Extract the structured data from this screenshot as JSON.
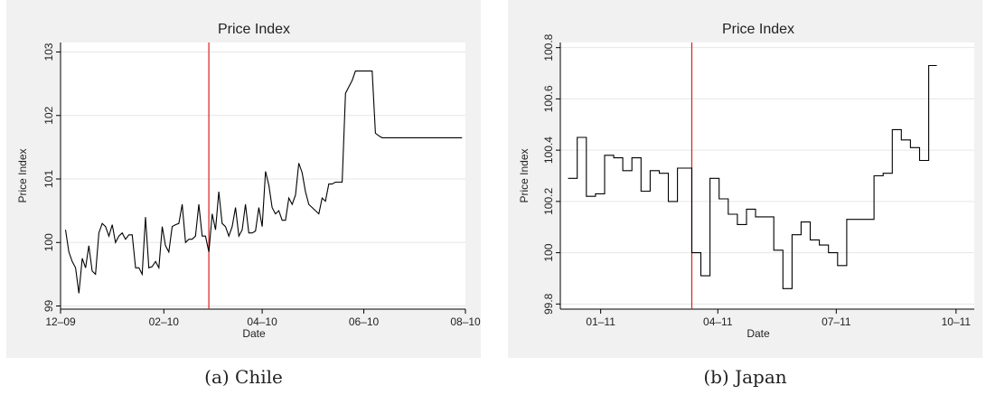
{
  "chart_data": [
    {
      "type": "line",
      "title": "Price Index",
      "xlabel": "Date",
      "ylabel": "Price Index",
      "caption": "(a)  Chile",
      "x_ticks": [
        "12–09",
        "02–10",
        "04–10",
        "06–10",
        "08–10"
      ],
      "xlim": [
        "2009-12-01",
        "2010-08-01"
      ],
      "y_ticks": [
        "99",
        "100",
        "101",
        "102",
        "103"
      ],
      "ylim": [
        98.95,
        103.15
      ],
      "grid": true,
      "line_color": "#000000",
      "vline": {
        "x": "2010-02-28",
        "color": "#d62020"
      },
      "series": [
        {
          "x": [
            "2009-12-04",
            "2009-12-06",
            "2009-12-08",
            "2009-12-10",
            "2009-12-12",
            "2009-12-14",
            "2009-12-16",
            "2009-12-18",
            "2009-12-20",
            "2009-12-22",
            "2009-12-24",
            "2009-12-26",
            "2009-12-28",
            "2009-12-30",
            "2010-01-01",
            "2010-01-03",
            "2010-01-05",
            "2010-01-07",
            "2010-01-09",
            "2010-01-11",
            "2010-01-13",
            "2010-01-15",
            "2010-01-17",
            "2010-01-19",
            "2010-01-21",
            "2010-01-23",
            "2010-01-25",
            "2010-01-27",
            "2010-01-29",
            "2010-01-31",
            "2010-02-02",
            "2010-02-04",
            "2010-02-06",
            "2010-02-08",
            "2010-02-10",
            "2010-02-12",
            "2010-02-14",
            "2010-02-16",
            "2010-02-18",
            "2010-02-20",
            "2010-02-22",
            "2010-02-24",
            "2010-02-26",
            "2010-02-28",
            "2010-03-02",
            "2010-03-04",
            "2010-03-06",
            "2010-03-08",
            "2010-03-10",
            "2010-03-12",
            "2010-03-14",
            "2010-03-16",
            "2010-03-18",
            "2010-03-20",
            "2010-03-22",
            "2010-03-24",
            "2010-03-26",
            "2010-03-28",
            "2010-03-30",
            "2010-04-01",
            "2010-04-03",
            "2010-04-05",
            "2010-04-07",
            "2010-04-09",
            "2010-04-11",
            "2010-04-13",
            "2010-04-15",
            "2010-04-17",
            "2010-04-19",
            "2010-04-21",
            "2010-04-23",
            "2010-04-25",
            "2010-04-27",
            "2010-04-29",
            "2010-05-01",
            "2010-05-03",
            "2010-05-05",
            "2010-05-07",
            "2010-05-09",
            "2010-05-11",
            "2010-05-13",
            "2010-05-15",
            "2010-05-17",
            "2010-05-19",
            "2010-05-21",
            "2010-05-23",
            "2010-05-25",
            "2010-05-27",
            "2010-05-29",
            "2010-05-31",
            "2010-06-02",
            "2010-06-04",
            "2010-06-06",
            "2010-06-08",
            "2010-06-10",
            "2010-06-12",
            "2010-06-14",
            "2010-06-16",
            "2010-06-18",
            "2010-06-20",
            "2010-06-22",
            "2010-06-24",
            "2010-06-26",
            "2010-06-28",
            "2010-06-30",
            "2010-07-02",
            "2010-07-04",
            "2010-07-06",
            "2010-07-08",
            "2010-07-10",
            "2010-07-12",
            "2010-07-14",
            "2010-07-16",
            "2010-07-18",
            "2010-07-20",
            "2010-07-22",
            "2010-07-24",
            "2010-07-26",
            "2010-07-28",
            "2010-07-30"
          ],
          "y": [
            100.2,
            99.85,
            99.7,
            99.6,
            99.2,
            99.75,
            99.6,
            99.95,
            99.55,
            99.5,
            100.15,
            100.3,
            100.25,
            100.1,
            100.28,
            100.0,
            100.1,
            100.15,
            100.05,
            100.12,
            100.12,
            99.6,
            99.6,
            99.5,
            100.4,
            99.6,
            99.62,
            99.7,
            99.6,
            100.25,
            99.95,
            99.85,
            100.25,
            100.28,
            100.3,
            100.6,
            100.0,
            100.05,
            100.05,
            100.1,
            100.6,
            100.1,
            100.1,
            99.85,
            100.45,
            100.2,
            100.8,
            100.3,
            100.25,
            100.1,
            100.25,
            100.55,
            100.1,
            100.2,
            100.6,
            100.15,
            100.15,
            100.18,
            100.55,
            100.25,
            101.12,
            100.9,
            100.55,
            100.45,
            100.5,
            100.35,
            100.35,
            100.7,
            100.6,
            100.75,
            101.25,
            101.1,
            100.8,
            100.6,
            100.55,
            100.5,
            100.45,
            100.7,
            100.65,
            100.92,
            100.92,
            100.95,
            100.95,
            100.95,
            102.35,
            102.45,
            102.55,
            102.7,
            102.7,
            102.7,
            102.7,
            102.7,
            102.7,
            101.72,
            101.68,
            101.65,
            101.65,
            101.65,
            101.65,
            101.65,
            101.65,
            101.65,
            101.65,
            101.65,
            101.65,
            101.65,
            101.65,
            101.65,
            101.65,
            101.65,
            101.65,
            101.65,
            101.65,
            101.65,
            101.65,
            101.65,
            101.65,
            101.65,
            101.65,
            101.65
          ]
        }
      ]
    },
    {
      "type": "line",
      "title": "Price Index",
      "xlabel": "Date",
      "ylabel": "Price Index",
      "caption": "(b)  Japan",
      "x_ticks": [
        "01–11",
        "04–11",
        "07–11",
        "10–11"
      ],
      "xlim": [
        "2010-12-01",
        "2011-10-15"
      ],
      "y_ticks": [
        "99.8",
        "100",
        "100.2",
        "100.4",
        "100.6",
        "100.8"
      ],
      "ylim": [
        99.78,
        100.82
      ],
      "grid": true,
      "line_color": "#000000",
      "vline": {
        "x": "2011-03-12",
        "color": "#d62020"
      },
      "series": [
        {
          "x": [
            "2010-12-07",
            "2010-12-14",
            "2010-12-21",
            "2010-12-28",
            "2011-01-04",
            "2011-01-11",
            "2011-01-18",
            "2011-01-25",
            "2011-02-01",
            "2011-02-08",
            "2011-02-15",
            "2011-02-22",
            "2011-03-01",
            "2011-03-08",
            "2011-03-12",
            "2011-03-19",
            "2011-03-26",
            "2011-04-02",
            "2011-04-09",
            "2011-04-16",
            "2011-04-23",
            "2011-04-30",
            "2011-05-07",
            "2011-05-14",
            "2011-05-21",
            "2011-05-28",
            "2011-06-04",
            "2011-06-11",
            "2011-06-18",
            "2011-06-25",
            "2011-07-02",
            "2011-07-09",
            "2011-07-16",
            "2011-07-23",
            "2011-07-30",
            "2011-08-06",
            "2011-08-13",
            "2011-08-20",
            "2011-08-27",
            "2011-09-03",
            "2011-09-10"
          ],
          "y": [
            100.29,
            100.45,
            100.22,
            100.23,
            100.38,
            100.37,
            100.32,
            100.37,
            100.24,
            100.32,
            100.31,
            100.2,
            100.33,
            100.33,
            100.0,
            99.91,
            100.29,
            100.21,
            100.15,
            100.11,
            100.17,
            100.14,
            100.14,
            100.01,
            99.86,
            100.07,
            100.12,
            100.05,
            100.03,
            100.0,
            99.95,
            100.13,
            100.13,
            100.13,
            100.3,
            100.31,
            100.48,
            100.44,
            100.41,
            100.36,
            100.73
          ]
        }
      ]
    }
  ]
}
